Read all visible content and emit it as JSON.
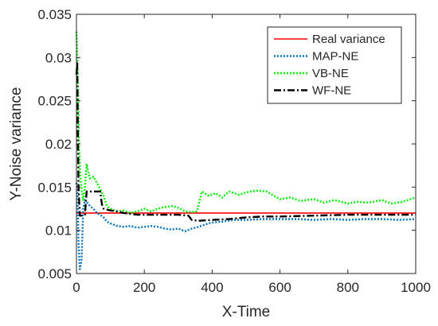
{
  "chart_data": {
    "type": "line",
    "xlabel": "X-Time",
    "ylabel": "Y-Noise variance",
    "xlim": [
      0,
      1000
    ],
    "ylim": [
      0.005,
      0.035
    ],
    "xticks": [
      0,
      200,
      400,
      600,
      800,
      1000
    ],
    "xtick_labels": [
      "0",
      "200",
      "400",
      "600",
      "800",
      "1000"
    ],
    "yticks": [
      0.005,
      0.01,
      0.015,
      0.02,
      0.025,
      0.03,
      0.035
    ],
    "ytick_labels": [
      "0.005",
      "0.01",
      "0.015",
      "0.02",
      "0.025",
      "0.03",
      "0.035"
    ],
    "grid": false,
    "legend_position": "top-right",
    "series": [
      {
        "name": "Real variance",
        "color": "#ff0000",
        "style": "solid",
        "x": [
          0,
          1000
        ],
        "y": [
          0.012,
          0.012
        ]
      },
      {
        "name": "MAP-NE",
        "color": "#0072bd",
        "style": "dotted",
        "x": [
          0,
          3,
          6,
          10,
          15,
          20,
          25,
          30,
          40,
          50,
          60,
          70,
          80,
          90,
          100,
          120,
          140,
          160,
          180,
          200,
          220,
          240,
          260,
          280,
          300,
          320,
          340,
          360,
          380,
          400,
          430,
          460,
          500,
          550,
          600,
          650,
          700,
          750,
          800,
          850,
          900,
          950,
          1000
        ],
        "y": [
          0.0155,
          0.0145,
          0.0085,
          0.0055,
          0.0065,
          0.0125,
          0.0135,
          0.0133,
          0.0128,
          0.0125,
          0.012,
          0.0118,
          0.0115,
          0.011,
          0.0108,
          0.0105,
          0.0104,
          0.0105,
          0.0103,
          0.0104,
          0.0105,
          0.0104,
          0.0102,
          0.0101,
          0.0102,
          0.0099,
          0.0102,
          0.0104,
          0.0107,
          0.0109,
          0.011,
          0.0112,
          0.0112,
          0.0113,
          0.0113,
          0.0113,
          0.0112,
          0.0113,
          0.0112,
          0.0113,
          0.0113,
          0.0112,
          0.0113
        ]
      },
      {
        "name": "VB-NE",
        "color": "#00ee00",
        "style": "dotted",
        "x": [
          0,
          2,
          5,
          8,
          12,
          16,
          20,
          25,
          30,
          35,
          40,
          50,
          60,
          70,
          80,
          90,
          100,
          120,
          140,
          160,
          180,
          200,
          220,
          240,
          260,
          280,
          300,
          320,
          340,
          355,
          370,
          390,
          410,
          430,
          450,
          480,
          500,
          530,
          560,
          600,
          630,
          660,
          700,
          730,
          760,
          800,
          830,
          860,
          900,
          930,
          960,
          1000
        ],
        "y": [
          0.033,
          0.031,
          0.026,
          0.0195,
          0.016,
          0.0145,
          0.0135,
          0.015,
          0.0177,
          0.0168,
          0.016,
          0.0162,
          0.0155,
          0.0148,
          0.014,
          0.0128,
          0.0125,
          0.0122,
          0.0123,
          0.012,
          0.0122,
          0.0125,
          0.0122,
          0.0125,
          0.0127,
          0.0128,
          0.0126,
          0.0122,
          0.0121,
          0.0122,
          0.0145,
          0.014,
          0.0143,
          0.0138,
          0.0145,
          0.0141,
          0.0144,
          0.0146,
          0.0145,
          0.0136,
          0.0138,
          0.0134,
          0.0136,
          0.0132,
          0.0135,
          0.0131,
          0.0133,
          0.0132,
          0.0135,
          0.0131,
          0.0133,
          0.0138
        ]
      },
      {
        "name": "WF-NE",
        "color": "#000000",
        "style": "dashdot",
        "x": [
          0,
          2,
          4,
          6,
          10,
          15,
          20,
          25,
          30,
          35,
          40,
          50,
          60,
          70,
          75,
          80,
          90,
          100,
          120,
          140,
          160,
          180,
          200,
          250,
          300,
          330,
          340,
          360,
          400,
          450,
          500,
          550,
          600,
          700,
          800,
          900,
          1000
        ],
        "y": [
          0.028,
          0.0295,
          0.022,
          0.015,
          0.0117,
          0.0117,
          0.0117,
          0.0118,
          0.0145,
          0.0145,
          0.0145,
          0.0145,
          0.0145,
          0.0145,
          0.013,
          0.0125,
          0.0124,
          0.0123,
          0.0122,
          0.012,
          0.0119,
          0.0118,
          0.0118,
          0.0118,
          0.0118,
          0.0117,
          0.0112,
          0.0111,
          0.0112,
          0.0113,
          0.0115,
          0.0116,
          0.0116,
          0.0117,
          0.0118,
          0.0118,
          0.0118
        ]
      }
    ]
  }
}
